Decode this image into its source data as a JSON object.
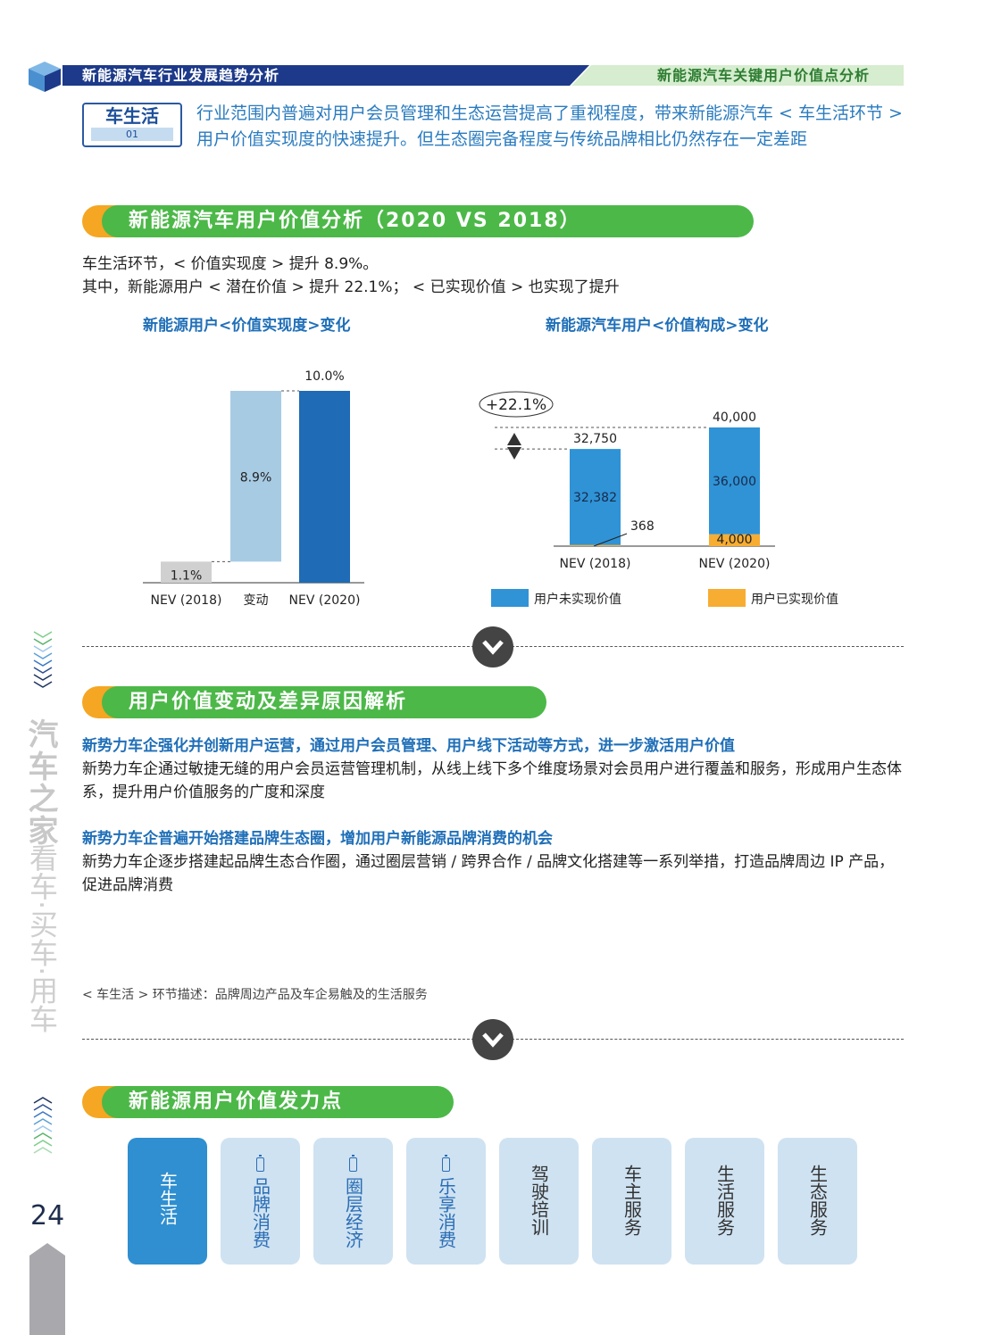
{
  "header": {
    "left": "新能源汽车行业发展趋势分析",
    "right": "新能源汽车关键用户价值点分析"
  },
  "tag": {
    "title": "车生活",
    "num": "01"
  },
  "intro": "行业范围内普遍对用户会员管理和生态运营提高了重视程度，带来新能源汽车 < 车生活环节 > 用户价值实现度的快速提升。但生态圈完备程度与传统品牌相比仍然存在一定差距",
  "section1": {
    "title": "新能源汽车用户价值分析（2020 VS 2018）",
    "line1": "车生活环节，< 价值实现度 > 提升 8.9%。",
    "line2": "其中，新能源用户 < 潜在价值 > 提升 22.1%； < 已实现价值 > 也实现了提升"
  },
  "chart_data": [
    {
      "type": "bar",
      "title": "新能源用户<价值实现度>变化",
      "categories": [
        "NEV (2018)",
        "变动",
        "NEV (2020)"
      ],
      "values": [
        1.1,
        8.9,
        10.0
      ],
      "base": [
        0,
        1.1,
        0
      ],
      "labels": [
        "1.1%",
        "8.9%",
        "10.0%"
      ],
      "colors": [
        "#d0d0d0",
        "#a8cbe4",
        "#1f6bb5"
      ],
      "ylim": [
        0,
        10
      ]
    },
    {
      "type": "bar",
      "stacked": true,
      "title": "新能源汽车用户<价值构成>变化",
      "categories": [
        "NEV (2018)",
        "NEV (2020)"
      ],
      "series": [
        {
          "name": "用户未实现价值",
          "values": [
            32382,
            36000
          ],
          "color": "#2f93d6"
        },
        {
          "name": "用户已实现价值",
          "values": [
            368,
            4000
          ],
          "color": "#f7ad32"
        }
      ],
      "totals": [
        "32,750",
        "40,000"
      ],
      "series_labels": [
        [
          "32,382",
          "36,000"
        ],
        [
          "368",
          "4,000"
        ]
      ],
      "annotation": "+22.1%",
      "legend": "bottom"
    }
  ],
  "section2": {
    "title": "用户价值变动及差异原因解析",
    "items": [
      {
        "heading": "新势力车企强化并创新用户运营，通过用户会员管理、用户线下活动等方式，进一步激活用户价值",
        "text": "新势力车企通过敏捷无缝的用户会员运营管理机制，从线上线下多个维度场景对会员用户进行覆盖和服务，形成用户生态体系，提升用户价值服务的广度和深度"
      },
      {
        "heading": "新势力车企普遍开始搭建品牌生态圈，增加用户新能源品牌消费的机会",
        "text": "新势力车企逐步搭建起品牌生态合作圈，通过圈层营销 / 跨界合作 / 品牌文化搭建等一系列举措，打造品牌周边 IP 产品，促进品牌消费"
      }
    ],
    "note": "< 车生活 > 环节描述：品牌周边产品及车企易触及的生活服务"
  },
  "section3": {
    "title": "新能源用户价值发力点",
    "cards": [
      "车生活",
      "品牌消费",
      "圈层经济",
      "乐享消费",
      "驾驶培训",
      "车主服务",
      "生活服务",
      "生态服务"
    ]
  },
  "side": {
    "brand": "汽车之家",
    "sub": "看车·买车·用车",
    "page": "24"
  }
}
